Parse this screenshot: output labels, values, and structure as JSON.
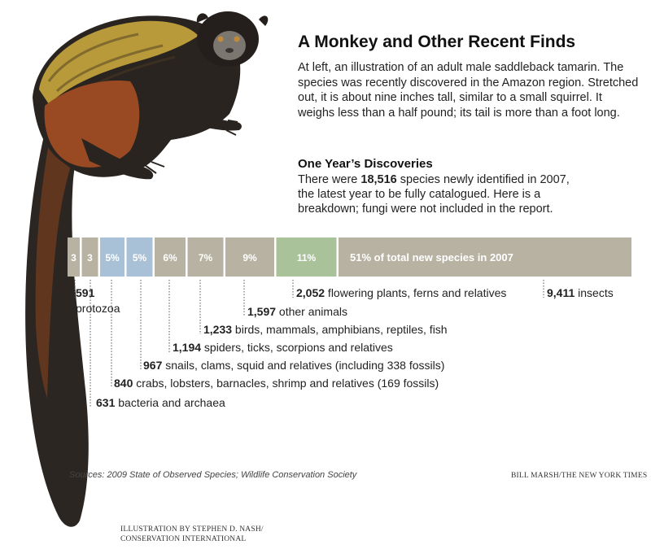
{
  "title": "A Monkey and Other Recent Finds",
  "intro": "At left, an illustration of an adult male saddleback tamarin. The species was recently discovered in the Amazon region. Stretched out, it is about nine inches tall, similar to a small squirrel. It weighs less than a half pound; its tail is more than a foot long.",
  "subhead": "One Year’s Discoveries",
  "sub_line1_pre": "There were ",
  "sub_line1_num": "18,516",
  "sub_line1_post": " species newly identified in 2007,",
  "sub_line2": "the latest year to be fully catalogued. Here is a",
  "sub_line3": "breakdown; fungi were not included in the report.",
  "source": "Sources: 2009 State of Observed Species; Wildlife Conservation Society",
  "credit": "BILL MARSH/THE NEW YORK TIMES",
  "illustration_credit_1": "ILLUSTRATION BY STEPHEN D. NASH/",
  "illustration_credit_2": "CONSERVATION INTERNATIONAL",
  "colors": {
    "gray": "#b7b2a2",
    "blue": "#a8c1d6",
    "green": "#a9c29a",
    "guide": "#555555"
  },
  "chart_data": {
    "type": "bar",
    "orientation": "stacked-horizontal",
    "total": 18516,
    "segments": [
      {
        "label": "3",
        "value": 591,
        "name": "protozoa",
        "color": "gray"
      },
      {
        "label": "3",
        "value": 631,
        "name": "bacteria and archaea",
        "color": "gray"
      },
      {
        "label": "5%",
        "value": 840,
        "name": "crabs, lobsters, barnacles, shrimp and relatives (169 fossils)",
        "color": "blue"
      },
      {
        "label": "5%",
        "value": 967,
        "name": "snails, clams, squid and relatives (including 338 fossils)",
        "color": "blue"
      },
      {
        "label": "6%",
        "value": 1194,
        "name": "spiders, ticks, scorpions and relatives",
        "color": "gray"
      },
      {
        "label": "7%",
        "value": 1233,
        "name": "birds, mammals, amphibians, reptiles, fish",
        "color": "gray"
      },
      {
        "label": "9%",
        "value": 1597,
        "name": "other animals",
        "color": "gray"
      },
      {
        "label": "11%",
        "value": 2052,
        "name": "flowering plants, ferns and relatives",
        "color": "green"
      },
      {
        "label": "51% of total new species in 2007",
        "value": 9411,
        "name": "insects",
        "color": "gray"
      }
    ]
  },
  "annotations": [
    {
      "num": "591",
      "text": ""
    },
    {
      "num": "631",
      "text": " bacteria and archaea"
    },
    {
      "num": "840",
      "text": " crabs, lobsters, barnacles, shrimp and relatives (169 fossils)"
    },
    {
      "num": "967",
      "text": " snails, clams, squid and relatives (including 338 fossils)"
    },
    {
      "num": "1,194",
      "text": " spiders, ticks, scorpions and relatives"
    },
    {
      "num": "1,233",
      "text": " birds, mammals, amphibians, reptiles, fish"
    },
    {
      "num": "1,597",
      "text": " other animals"
    },
    {
      "num": "2,052",
      "text": " flowering plants, ferns and relatives"
    },
    {
      "num": "9,411",
      "text": " insects"
    }
  ],
  "protozoa_label": "protozoa"
}
